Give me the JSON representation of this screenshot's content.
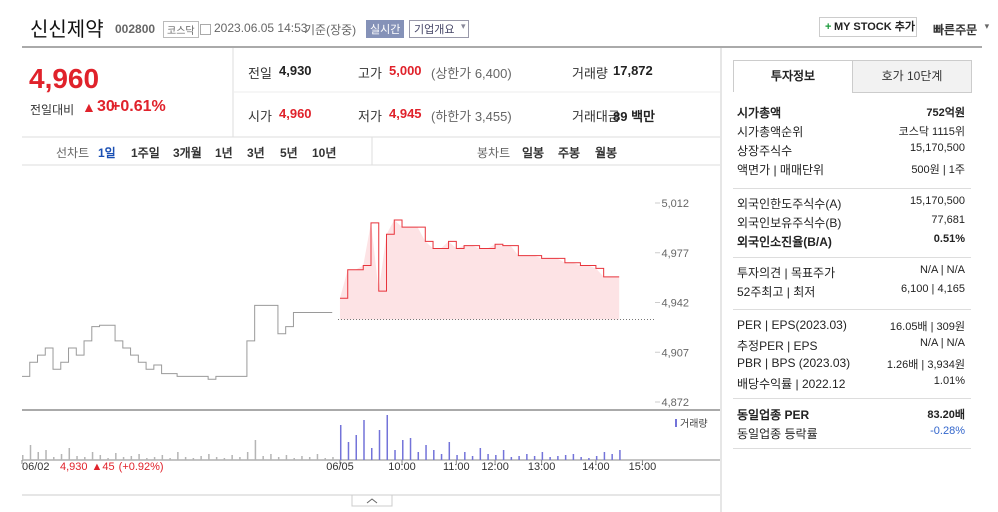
{
  "header": {
    "name": "신신제약",
    "code": "002800",
    "market": "코스닥",
    "datetime": "2023.06.05 14:53",
    "basis": "기준(장중)",
    "realtime": "실시간",
    "company": "기업개요",
    "mystock": "MY STOCK 추가",
    "quick": "빠른주문"
  },
  "quote": {
    "price": "4,960",
    "change_label": "전일대비",
    "change": "30",
    "change_pct": "+0.61%",
    "color": "#e0222b",
    "stats": [
      {
        "label": "전일",
        "value": "4,930"
      },
      {
        "label": "고가",
        "value": "5,000",
        "note": "(상한가 6,400)",
        "color": "#e0222b"
      },
      {
        "label": "거래량",
        "value": "17,872"
      },
      {
        "label": "시가",
        "value": "4,960",
        "color": "#e0222b"
      },
      {
        "label": "저가",
        "value": "4,945",
        "note": "(하한가 3,455)",
        "color": "#e0222b"
      },
      {
        "label": "거래대금",
        "value": "89 백만"
      }
    ]
  },
  "tabs": {
    "line_label": "선차트",
    "periods": [
      "1일",
      "1주일",
      "3개월",
      "1년",
      "3년",
      "5년",
      "10년"
    ],
    "candle_label": "봉차트",
    "candles": [
      "일봉",
      "주봉",
      "월봉"
    ]
  },
  "chart": {
    "type": "line",
    "ylim": [
      4872,
      5012
    ],
    "yticks": [
      {
        "value": 5012,
        "label": "5,012"
      },
      {
        "value": 4977,
        "label": "4,977"
      },
      {
        "value": 4942,
        "label": "4,942"
      },
      {
        "value": 4907,
        "label": "4,907"
      },
      {
        "value": 4872,
        "label": "4,872"
      }
    ],
    "baseline": 4930,
    "area_color": "#fde3e5",
    "categories": [
      "06/02",
      null,
      null,
      null,
      null,
      null,
      null,
      null,
      null,
      null,
      null,
      null,
      null,
      null,
      null,
      null,
      null,
      null,
      null,
      null,
      null,
      null,
      null,
      null,
      null,
      null,
      null,
      null,
      null,
      null,
      null,
      null,
      null,
      null,
      null,
      null,
      null,
      null,
      null,
      null,
      null,
      "06/05",
      null,
      null,
      null,
      null,
      null,
      null,
      null,
      "10:00",
      null,
      null,
      null,
      null,
      null,
      null,
      "11:00",
      null,
      null,
      null,
      null,
      "12:00",
      null,
      null,
      null,
      null,
      null,
      "13:00",
      null,
      null,
      null,
      null,
      null,
      null,
      "14:00",
      null,
      null,
      null,
      null,
      null,
      "15:00",
      null,
      null,
      null,
      null,
      null,
      null,
      null,
      null,
      null
    ],
    "series": [
      {
        "color": "#9a9a9a",
        "values": [
          4890,
          4900,
          4905,
          4910,
          4895,
          4900,
          4910,
          4905,
          4915,
          4925,
          4926,
          4926,
          4915,
          4910,
          4905,
          4900,
          4895,
          4898,
          4892,
          4892,
          4890,
          4890,
          4890,
          4890,
          4888,
          4890,
          4890,
          4890,
          4890,
          4915,
          4940,
          4940,
          4940,
          4920,
          4925,
          4935,
          4935,
          4935,
          4935,
          4935,
          4935,
          null,
          null,
          null,
          null,
          null,
          null,
          null,
          null,
          null,
          null,
          null,
          null,
          null,
          null,
          null,
          null,
          null,
          null,
          null,
          null,
          null,
          null,
          null,
          null,
          null,
          null,
          null,
          null,
          null,
          null,
          null,
          null,
          null,
          null,
          null,
          null,
          null,
          null,
          null,
          null,
          null,
          null,
          null,
          null,
          null,
          null,
          null,
          null,
          null
        ]
      },
      {
        "color": "#e8333b",
        "values": [
          null,
          null,
          null,
          null,
          null,
          null,
          null,
          null,
          null,
          null,
          null,
          null,
          null,
          null,
          null,
          null,
          null,
          null,
          null,
          null,
          null,
          null,
          null,
          null,
          null,
          null,
          null,
          null,
          null,
          null,
          null,
          null,
          null,
          null,
          null,
          null,
          null,
          null,
          null,
          null,
          null,
          4945,
          4965,
          4965,
          4968,
          4998,
          4950,
          4990,
          5000,
          4995,
          4995,
          4995,
          4985,
          4980,
          4980,
          4985,
          4980,
          4982,
          4982,
          4980,
          4980,
          4983,
          4982,
          4982,
          4975,
          4975,
          4975,
          4973,
          4973,
          4973,
          4970,
          4970,
          4968,
          4968,
          4966,
          4960,
          4960,
          4960,
          null,
          null,
          null,
          null,
          null,
          null,
          null,
          null,
          null,
          null,
          null,
          null
        ]
      }
    ],
    "volume": {
      "name": "거래량",
      "color": "#7373d9",
      "prev_color": "#b5b5b5",
      "values": [
        5,
        15,
        8,
        10,
        3,
        6,
        12,
        4,
        3,
        8,
        5,
        2,
        7,
        3,
        4,
        6,
        2,
        3,
        5,
        2,
        8,
        3,
        2,
        4,
        6,
        3,
        2,
        5,
        3,
        8,
        20,
        4,
        6,
        3,
        5,
        2,
        4,
        3,
        6,
        2,
        3,
        35,
        18,
        25,
        40,
        12,
        30,
        45,
        10,
        20,
        22,
        8,
        15,
        10,
        6,
        18,
        5,
        8,
        4,
        12,
        6,
        5,
        10,
        3,
        4,
        6,
        4,
        8,
        3,
        4,
        5,
        6,
        3,
        2,
        4,
        8,
        6,
        10,
        null,
        null,
        null,
        null,
        null,
        null,
        null,
        null,
        null,
        null,
        null,
        null
      ]
    },
    "prev_close": "4,930",
    "prev_change": "▲45",
    "prev_pct": "(+0.92%)"
  },
  "info": {
    "tabs": [
      "투자정보",
      "호가 10단계"
    ],
    "groups": [
      [
        {
          "label": "시가총액",
          "value": "752억원",
          "bold": true
        },
        {
          "label": "시가총액순위",
          "value": "코스닥 1115위"
        },
        {
          "label": "상장주식수",
          "value": "15,170,500"
        },
        {
          "label": "액면가 | 매매단위",
          "value": "500원 | 1주"
        }
      ],
      [
        {
          "label": "외국인한도주식수(A)",
          "value": "15,170,500"
        },
        {
          "label": "외국인보유주식수(B)",
          "value": "77,681"
        },
        {
          "label": "외국인소진율(B/A)",
          "value": "0.51%",
          "bold": true
        }
      ],
      [
        {
          "label": "투자의견 | 목표주가",
          "value": "N/A | N/A"
        },
        {
          "label": "52주최고 | 최저",
          "value": "6,100 | 4,165"
        }
      ],
      [
        {
          "label": "PER | EPS(2023.03)",
          "value": "16.05배 | 309원"
        },
        {
          "label": "추정PER | EPS",
          "value": "N/A | N/A"
        },
        {
          "label": "PBR | BPS (2023.03)",
          "value": "1.26배 | 3,934원"
        },
        {
          "label": "배당수익률 | 2022.12",
          "value": "1.01%"
        }
      ],
      [
        {
          "label": "동일업종 PER",
          "value": "83.20배",
          "bold": true
        },
        {
          "label": "동일업종 등락률",
          "value": "-0.28%",
          "color": "#3366cc"
        }
      ]
    ]
  }
}
